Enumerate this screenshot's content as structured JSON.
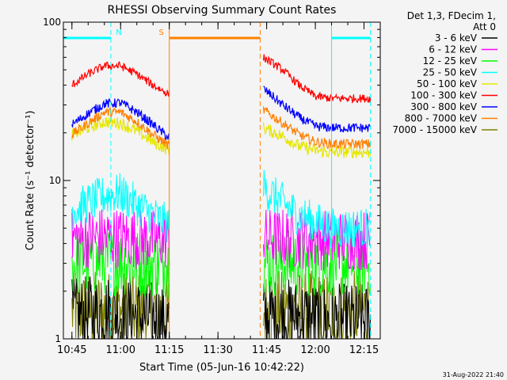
{
  "chart_data": {
    "type": "line",
    "title": "RHESSI Observing Summary Count Rates",
    "xlabel": "Start Time (05-Jun-16 10:42:22)",
    "ylabel": "Count Rate (s⁻¹ detector⁻¹)",
    "y_scale": "log",
    "ylim": [
      1,
      100
    ],
    "xlim": [
      "10:42:22",
      "12:20:00"
    ],
    "x_ticks": [
      "10:45",
      "11:00",
      "11:15",
      "11:30",
      "11:45",
      "12:00",
      "12:15"
    ],
    "y_ticks": [
      "1",
      "10",
      "100"
    ],
    "grid": false,
    "legend_placement": "right",
    "legend_header": [
      "Det 1,3, FDecim 1,",
      "Att 0"
    ],
    "series": [
      {
        "name": "3 - 6 keV",
        "color": "#000000",
        "values": [
          {
            "t": "10:45",
            "y": 1.4
          },
          {
            "t": "10:55",
            "y": 1.5
          },
          {
            "t": "11:05",
            "y": 1.4
          },
          {
            "t": "11:15",
            "y": 1.3
          },
          {
            "t": "11:44",
            "y": 1.4
          },
          {
            "t": "11:55",
            "y": 1.4
          },
          {
            "t": "12:05",
            "y": 1.3
          },
          {
            "t": "12:17",
            "y": 1.3
          }
        ]
      },
      {
        "name": "6 - 12 keV",
        "color": "#ff00ff",
        "values": [
          {
            "t": "10:45",
            "y": 4.3
          },
          {
            "t": "10:55",
            "y": 4.4
          },
          {
            "t": "11:05",
            "y": 4.3
          },
          {
            "t": "11:15",
            "y": 4.2
          },
          {
            "t": "11:44",
            "y": 4.3
          },
          {
            "t": "11:55",
            "y": 4.3
          },
          {
            "t": "12:05",
            "y": 4.2
          },
          {
            "t": "12:17",
            "y": 4.2
          }
        ]
      },
      {
        "name": "12 - 25 keV",
        "color": "#00ff00",
        "values": [
          {
            "t": "10:45",
            "y": 3.0
          },
          {
            "t": "10:55",
            "y": 3.1
          },
          {
            "t": "11:05",
            "y": 3.0
          },
          {
            "t": "11:15",
            "y": 3.0
          },
          {
            "t": "11:44",
            "y": 3.0
          },
          {
            "t": "11:55",
            "y": 3.0
          },
          {
            "t": "12:05",
            "y": 3.0
          },
          {
            "t": "12:17",
            "y": 3.0
          }
        ]
      },
      {
        "name": "25 - 50 keV",
        "color": "#00ffff",
        "values": [
          {
            "t": "10:45",
            "y": 6.5
          },
          {
            "t": "10:55",
            "y": 8.0
          },
          {
            "t": "11:00",
            "y": 8.3
          },
          {
            "t": "11:05",
            "y": 7.0
          },
          {
            "t": "11:15",
            "y": 5.2
          },
          {
            "t": "11:44",
            "y": 9.0
          },
          {
            "t": "11:55",
            "y": 6.0
          },
          {
            "t": "12:05",
            "y": 5.0
          },
          {
            "t": "12:17",
            "y": 5.0
          }
        ]
      },
      {
        "name": "50 - 100 keV",
        "color": "#e6e600",
        "values": [
          {
            "t": "10:45",
            "y": 19.5
          },
          {
            "t": "10:50",
            "y": 21.5
          },
          {
            "t": "10:55",
            "y": 23.5
          },
          {
            "t": "11:00",
            "y": 23.0
          },
          {
            "t": "11:05",
            "y": 20.5
          },
          {
            "t": "11:10",
            "y": 17.5
          },
          {
            "t": "11:15",
            "y": 15.5
          },
          {
            "t": "11:44",
            "y": 21.5
          },
          {
            "t": "11:50",
            "y": 19.0
          },
          {
            "t": "11:55",
            "y": 16.5
          },
          {
            "t": "12:00",
            "y": 15.5
          },
          {
            "t": "12:05",
            "y": 15.0
          },
          {
            "t": "12:10",
            "y": 15.2
          },
          {
            "t": "12:17",
            "y": 15.0
          }
        ]
      },
      {
        "name": "100 - 300 keV",
        "color": "#ff0000",
        "values": [
          {
            "t": "10:45",
            "y": 40
          },
          {
            "t": "10:50",
            "y": 47
          },
          {
            "t": "10:55",
            "y": 53
          },
          {
            "t": "11:00",
            "y": 53
          },
          {
            "t": "11:05",
            "y": 47
          },
          {
            "t": "11:10",
            "y": 40
          },
          {
            "t": "11:15",
            "y": 35
          },
          {
            "t": "11:44",
            "y": 60
          },
          {
            "t": "11:50",
            "y": 50
          },
          {
            "t": "11:55",
            "y": 40
          },
          {
            "t": "12:00",
            "y": 34
          },
          {
            "t": "12:05",
            "y": 33
          },
          {
            "t": "12:10",
            "y": 33
          },
          {
            "t": "12:17",
            "y": 33
          }
        ]
      },
      {
        "name": "300 - 800 keV",
        "color": "#0000ff",
        "values": [
          {
            "t": "10:45",
            "y": 22.5
          },
          {
            "t": "10:50",
            "y": 26.5
          },
          {
            "t": "10:55",
            "y": 30.5
          },
          {
            "t": "11:00",
            "y": 31
          },
          {
            "t": "11:05",
            "y": 27
          },
          {
            "t": "11:10",
            "y": 22.5
          },
          {
            "t": "11:15",
            "y": 18.5
          },
          {
            "t": "11:44",
            "y": 38
          },
          {
            "t": "11:50",
            "y": 30
          },
          {
            "t": "11:55",
            "y": 25
          },
          {
            "t": "12:00",
            "y": 22
          },
          {
            "t": "12:05",
            "y": 21.5
          },
          {
            "t": "12:10",
            "y": 21.5
          },
          {
            "t": "12:17",
            "y": 21.5
          }
        ]
      },
      {
        "name": "800 - 7000 keV",
        "color": "#ff8000",
        "values": [
          {
            "t": "10:45",
            "y": 19.5
          },
          {
            "t": "10:50",
            "y": 23
          },
          {
            "t": "10:55",
            "y": 27
          },
          {
            "t": "11:00",
            "y": 27
          },
          {
            "t": "11:05",
            "y": 23.5
          },
          {
            "t": "11:10",
            "y": 19.5
          },
          {
            "t": "11:15",
            "y": 16.5
          },
          {
            "t": "11:44",
            "y": 28
          },
          {
            "t": "11:50",
            "y": 23
          },
          {
            "t": "11:55",
            "y": 19.5
          },
          {
            "t": "12:00",
            "y": 17.5
          },
          {
            "t": "12:05",
            "y": 17
          },
          {
            "t": "12:10",
            "y": 17
          },
          {
            "t": "12:17",
            "y": 17
          }
        ]
      },
      {
        "name": "7000 - 15000 keV",
        "color": "#808000",
        "values": [
          {
            "t": "10:45",
            "y": 1.5
          },
          {
            "t": "10:55",
            "y": 1.5
          },
          {
            "t": "11:05",
            "y": 1.5
          },
          {
            "t": "11:15",
            "y": 1.5
          },
          {
            "t": "11:44",
            "y": 1.5
          },
          {
            "t": "11:55",
            "y": 1.5
          },
          {
            "t": "12:05",
            "y": 1.5
          },
          {
            "t": "12:17",
            "y": 1.5
          }
        ]
      }
    ],
    "annotations": [
      {
        "label": "N",
        "color": "#00ffff",
        "bar": [
          "10:42:22",
          "10:57:00"
        ],
        "marker": "10:57:00"
      },
      {
        "label": "S",
        "color": "#ff8000",
        "bar": [
          "11:15:00",
          "11:43:00"
        ],
        "marker_start": "11:15:00",
        "marker_end": "11:43:00"
      },
      {
        "label": "",
        "color": "#00ffff",
        "bar": [
          "12:05:00",
          "12:17:00"
        ],
        "marker_start": "12:05:00",
        "marker_end": "12:17:00"
      }
    ],
    "footer_date": "31-Aug-2022 21:40"
  }
}
